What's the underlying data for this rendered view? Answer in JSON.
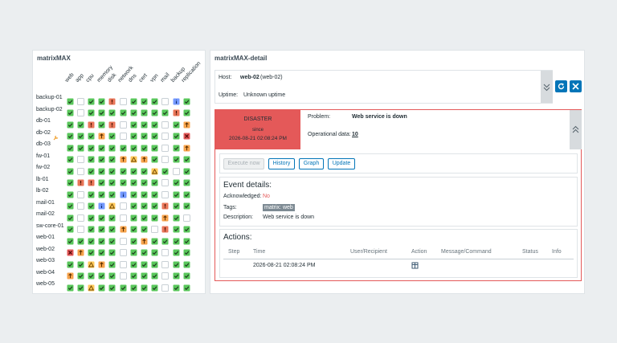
{
  "matrix_widget": {
    "title": "matrixMAX",
    "columns": [
      "web",
      "app",
      "cpu",
      "memory",
      "disk",
      "network",
      "dns",
      "cert",
      "vpn",
      "mail",
      "backup",
      "replication"
    ],
    "rows": [
      "backup-01",
      "backup-02",
      "db-01",
      "db-02",
      "db-03",
      "fw-01",
      "fw-02",
      "lb-01",
      "lb-02",
      "mail-01",
      "mail-02",
      "sw-core-01",
      "web-01",
      "web-02",
      "web-03",
      "web-04",
      "web-05"
    ]
  },
  "detail_widget": {
    "title": "matrixMAX-detail",
    "host": {
      "label": "Host:",
      "name": "web-02",
      "visible_name": "(web-02)",
      "uptime_label": "Uptime:",
      "uptime": "Unknown uptime"
    },
    "problem": {
      "severity": "DISASTER",
      "since_label": "since",
      "since": "2026-08-21 02:08:24 PM",
      "problem_label": "Problem:",
      "problem": "Web service is down",
      "opdata_label": "Operational data:",
      "opdata": 10
    },
    "buttons": [
      "Execute now",
      "History",
      "Graph",
      "Update"
    ],
    "event_details": {
      "title": "Event details:",
      "acknowledged_label": "Acknowledged:",
      "acknowledged": "No",
      "tags_label": "Tags:",
      "tag": "matrix: web",
      "description_label": "Description:",
      "description": "Web service is down"
    },
    "actions": {
      "title": "Actions:",
      "headers": [
        "Step",
        "Time",
        "User/Recipient",
        "Action",
        "Message/Command",
        "Status",
        "Info"
      ],
      "rows": [
        {
          "time": "2026-08-21 02:08:24 PM"
        }
      ]
    }
  }
}
